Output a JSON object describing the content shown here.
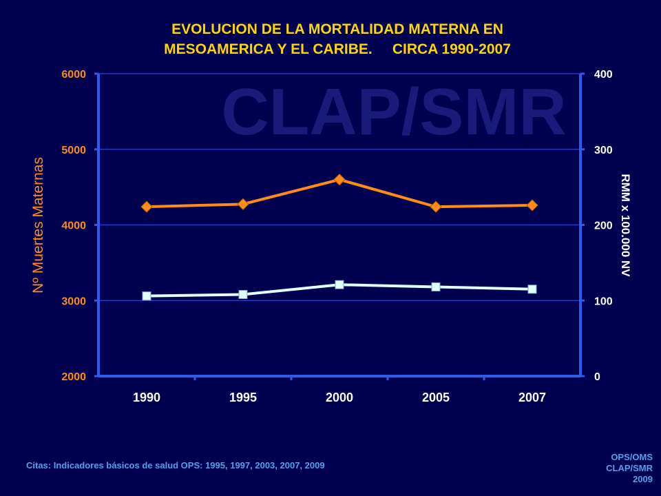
{
  "watermark": "CLAP/SMR",
  "title_lines": [
    "EVOLUCION DE LA MORTALIDAD MATERNA EN",
    "MESOAMERICA Y EL CARIBE.     CIRCA 1990-2007"
  ],
  "citation": "Citas: Indicadores básicos de salud OPS: 1995, 1997, 2003, 2007, 2009",
  "credit": [
    "OPS/OMS",
    "CLAP/SMR",
    "2009"
  ],
  "colors": {
    "background": "#000050",
    "title": "#FFD700",
    "left_axis": "#FF8C1A",
    "deaths_series": "#FF8C1A",
    "ratio_series": "#E0FFFF",
    "axis_line": "#2F5BEA",
    "text_white": "#FFFFFF",
    "citation": "#4FA3E8",
    "watermark": "#1A1A7A"
  },
  "chart_data": {
    "type": "line",
    "categories": [
      "1990",
      "1995",
      "2000",
      "2005",
      "2007"
    ],
    "y_left": {
      "label": "Nº Muertes Maternas",
      "range": [
        2000,
        6000
      ],
      "ticks": [
        "2000",
        "3000",
        "4000",
        "5000",
        "6000"
      ]
    },
    "y_right": {
      "label": "RMM x 100.000 NV",
      "range": [
        0,
        400
      ],
      "ticks": [
        "0",
        "100",
        "200",
        "300",
        "400"
      ]
    },
    "grid": true,
    "series": [
      {
        "axis": "left",
        "marker": "diamond",
        "values": [
          4240,
          4275,
          4600,
          4240,
          4260
        ]
      },
      {
        "axis": "right",
        "marker": "square",
        "values": [
          106,
          108,
          121,
          118,
          115
        ]
      }
    ]
  }
}
